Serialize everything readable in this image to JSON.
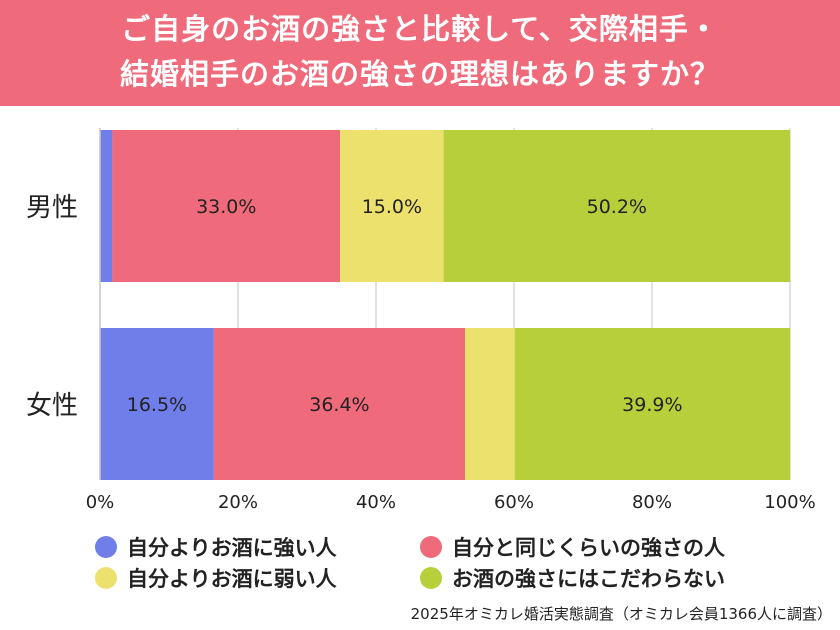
{
  "header": {
    "line1": "ご自身のお酒の強さと比較して、交際相手・",
    "line2": "結婚相手のお酒の強さの理想はありますか？",
    "bg_color": "#ef6b7b"
  },
  "chart_data": {
    "type": "bar",
    "orientation": "horizontal",
    "stacked": true,
    "categories": [
      "男性",
      "女性"
    ],
    "series": [
      {
        "name": "自分よりお酒に強い人",
        "color": "#6f7ee8",
        "values": [
          1.8,
          16.5
        ],
        "labels": [
          "",
          "16.5%"
        ]
      },
      {
        "name": "自分と同じくらいの強さの人",
        "color": "#ef6b7b",
        "values": [
          33.0,
          36.4
        ],
        "labels": [
          "33.0%",
          "36.4%"
        ]
      },
      {
        "name": "自分よりお酒に弱い人",
        "color": "#ede16e",
        "values": [
          15.0,
          7.2
        ],
        "labels": [
          "15.0%",
          ""
        ]
      },
      {
        "name": "お酒の強さにはこだわらない",
        "color": "#b7cf3b",
        "values": [
          50.2,
          39.9
        ],
        "labels": [
          "50.2%",
          "39.9%"
        ]
      }
    ],
    "xlim": [
      0,
      100
    ],
    "xticks": [
      "0%",
      "20%",
      "40%",
      "60%",
      "80%",
      "100%"
    ],
    "grid": true,
    "legend_position": "bottom"
  },
  "footer": {
    "source": "2025年オミカレ婚活実態調査（オミカレ会員1366人に調査）"
  }
}
